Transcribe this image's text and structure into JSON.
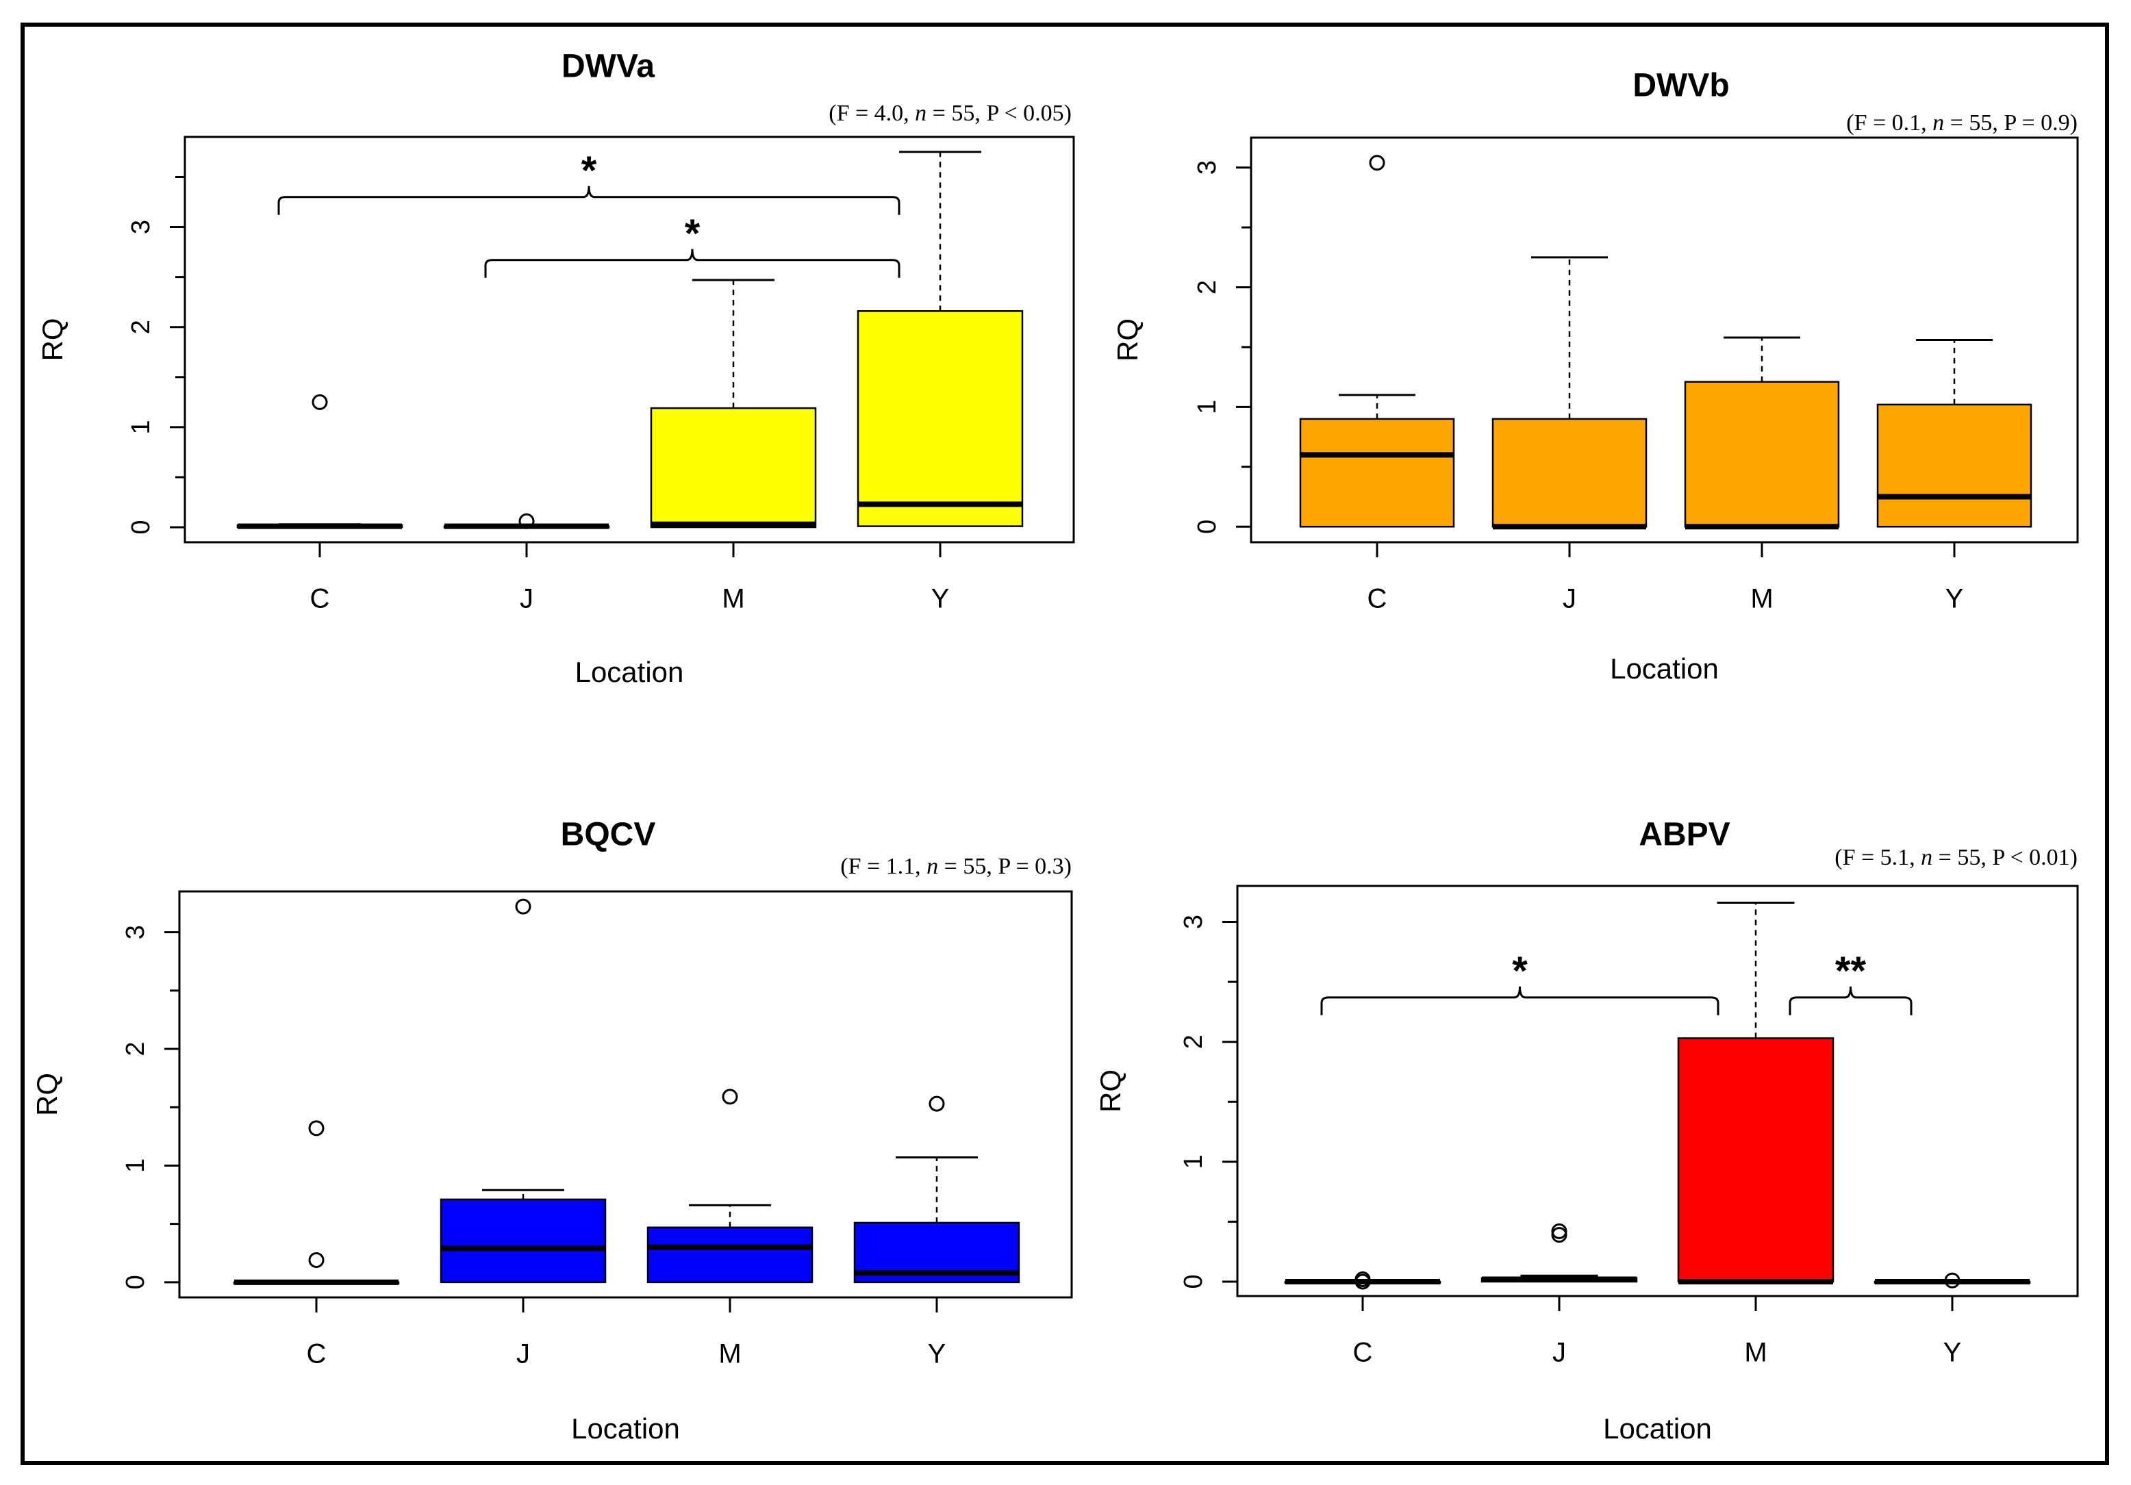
{
  "chart_data": [
    {
      "type": "box",
      "title": "DWVa",
      "stats": {
        "prefix": "(F = 4.0, ",
        "n_italic": "n",
        "suffix": " = 55, P < 0.05)"
      },
      "xlabel": "Location",
      "ylabel": "RQ",
      "categories": [
        "C",
        "J",
        "M",
        "Y"
      ],
      "ylim": [
        -0.15,
        3.9
      ],
      "yticks": [
        "0",
        "1",
        "2",
        "3"
      ],
      "fill": "#ffff00",
      "boxes": [
        {
          "min": 0.0,
          "q1": 0.0,
          "median": 0.01,
          "q3": 0.02,
          "max": 0.03,
          "outliers": [
            1.25
          ]
        },
        {
          "min": 0.0,
          "q1": 0.0,
          "median": 0.01,
          "q3": 0.01,
          "max": 0.02,
          "outliers": [
            0.06
          ]
        },
        {
          "min": 0.0,
          "q1": 0.0,
          "median": 0.03,
          "q3": 1.19,
          "max": 2.47,
          "outliers": []
        },
        {
          "min": 0.0,
          "q1": 0.01,
          "median": 0.23,
          "q3": 2.16,
          "max": 3.75,
          "outliers": []
        }
      ],
      "significance": [
        {
          "from": "C",
          "to": "Y",
          "y": 3.3,
          "label": "*"
        },
        {
          "from": "J",
          "to": "Y",
          "y": 2.67,
          "label": "*"
        }
      ]
    },
    {
      "type": "box",
      "title": "DWVb",
      "stats": {
        "prefix": "(F = 0.1, ",
        "n_italic": "n",
        "suffix": " = 55, P = 0.9)"
      },
      "xlabel": "Location",
      "ylabel": "RQ",
      "categories": [
        "C",
        "J",
        "M",
        "Y"
      ],
      "ylim": [
        -0.13,
        3.25
      ],
      "yticks": [
        "0",
        "1",
        "2",
        "3"
      ],
      "fill": "#ffa500",
      "boxes": [
        {
          "min": 0.0,
          "q1": 0.0,
          "median": 0.6,
          "q3": 0.9,
          "max": 1.1,
          "outliers": [
            3.04
          ]
        },
        {
          "min": 0.0,
          "q1": 0.0,
          "median": 0.0,
          "q3": 0.9,
          "max": 2.25,
          "outliers": []
        },
        {
          "min": 0.0,
          "q1": 0.0,
          "median": 0.0,
          "q3": 1.21,
          "max": 1.58,
          "outliers": []
        },
        {
          "min": 0.0,
          "q1": 0.0,
          "median": 0.25,
          "q3": 1.02,
          "max": 1.56,
          "outliers": []
        }
      ],
      "significance": []
    },
    {
      "type": "box",
      "title": "BQCV",
      "stats": {
        "prefix": "(F = 1.1, ",
        "n_italic": "n",
        "suffix": " = 55, P = 0.3)"
      },
      "xlabel": "Location",
      "ylabel": "RQ",
      "categories": [
        "C",
        "J",
        "M",
        "Y"
      ],
      "ylim": [
        -0.13,
        3.35
      ],
      "yticks": [
        "0",
        "1",
        "2",
        "3"
      ],
      "fill": "#0000ff",
      "boxes": [
        {
          "min": 0.0,
          "q1": 0.0,
          "median": 0.0,
          "q3": 0.0,
          "max": 0.0,
          "outliers": [
            1.32,
            0.19
          ]
        },
        {
          "min": 0.0,
          "q1": 0.0,
          "median": 0.29,
          "q3": 0.71,
          "max": 0.79,
          "outliers": [
            3.22
          ]
        },
        {
          "min": 0.0,
          "q1": 0.0,
          "median": 0.3,
          "q3": 0.47,
          "max": 0.66,
          "outliers": [
            1.59
          ]
        },
        {
          "min": 0.0,
          "q1": 0.0,
          "median": 0.08,
          "q3": 0.51,
          "max": 1.07,
          "outliers": [
            1.53
          ]
        }
      ],
      "significance": []
    },
    {
      "type": "box",
      "title": "ABPV",
      "stats": {
        "prefix": "(F = 5.1, ",
        "n_italic": "n",
        "suffix": " = 55, P < 0.01)"
      },
      "xlabel": "Location",
      "ylabel": "RQ",
      "categories": [
        "C",
        "J",
        "M",
        "Y"
      ],
      "ylim": [
        -0.12,
        3.3
      ],
      "yticks": [
        "0",
        "1",
        "2",
        "3"
      ],
      "fill": "#ff0000",
      "boxes": [
        {
          "min": 0.0,
          "q1": 0.0,
          "median": 0.0,
          "q3": 0.0,
          "max": 0.0,
          "outliers": [
            0.02,
            0.0
          ]
        },
        {
          "min": 0.0,
          "q1": 0.0,
          "median": 0.02,
          "q3": 0.03,
          "max": 0.05,
          "outliers": [
            0.42,
            0.39
          ]
        },
        {
          "min": 0.0,
          "q1": 0.0,
          "median": 0.0,
          "q3": 2.03,
          "max": 3.16,
          "outliers": []
        },
        {
          "min": 0.0,
          "q1": 0.0,
          "median": 0.0,
          "q3": 0.0,
          "max": 0.0,
          "outliers": [
            0.01
          ]
        }
      ],
      "significance": [
        {
          "from": "C",
          "to": "M",
          "y": 2.37,
          "label": "*"
        },
        {
          "from": "M",
          "to": "Y",
          "y": 2.37,
          "label": "**"
        }
      ]
    }
  ]
}
